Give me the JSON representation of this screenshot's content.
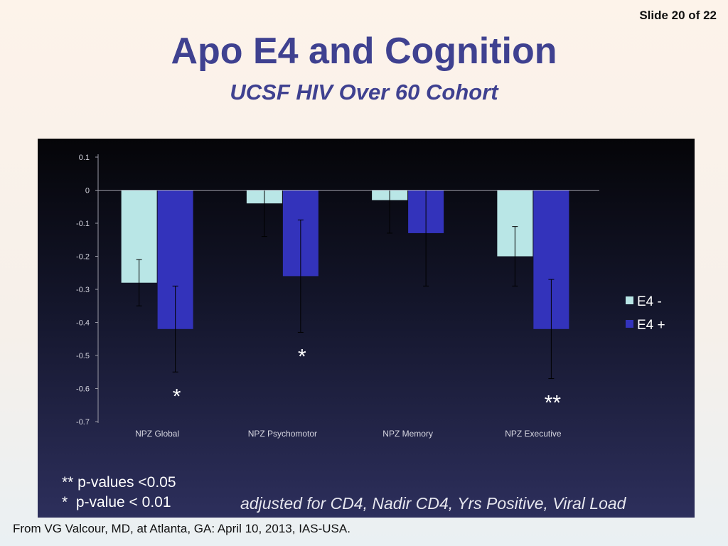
{
  "slide": {
    "number_label": "Slide 20 of 22"
  },
  "title": "Apo E4 and Cognition",
  "subtitle": "UCSF HIV Over 60 Cohort",
  "chart_data": {
    "type": "bar",
    "categories": [
      "NPZ Global",
      "NPZ Psychomotor",
      "NPZ Memory",
      "NPZ Executive"
    ],
    "series": [
      {
        "name": "E4 -",
        "color": "#b9e6e6",
        "values": [
          -0.28,
          -0.04,
          -0.03,
          -0.2
        ],
        "error_low": [
          -0.35,
          -0.14,
          -0.13,
          -0.29
        ],
        "error_high": [
          -0.21,
          0.0,
          0.0,
          -0.11
        ]
      },
      {
        "name": "E4 +",
        "color": "#3333bb",
        "values": [
          -0.42,
          -0.26,
          -0.13,
          -0.42
        ],
        "error_low": [
          -0.55,
          -0.43,
          -0.29,
          -0.57
        ],
        "error_high": [
          -0.29,
          -0.09,
          0.0,
          -0.27
        ]
      }
    ],
    "yticks": [
      "0.1",
      "0",
      "-0.1",
      "-0.2",
      "-0.3",
      "-0.4",
      "-0.5",
      "-0.6",
      "-0.7"
    ],
    "ylim": [
      -0.7,
      0.1
    ],
    "significance_markers": [
      {
        "category": "NPZ Global",
        "label": "*"
      },
      {
        "category": "NPZ Psychomotor",
        "label": "*"
      },
      {
        "category": "NPZ Executive",
        "label": "**"
      }
    ],
    "legend_position": "right",
    "xlabel": "",
    "ylabel": "",
    "title": ""
  },
  "footnotes": {
    "double_star": "** p-values <0.05",
    "single_star": "*  p-value < 0.01",
    "adjusted": "adjusted for CD4, Nadir CD4, Yrs Positive, Viral Load"
  },
  "source": "From VG Valcour, MD, at Atlanta, GA: April 10, 2013, IAS-USA."
}
